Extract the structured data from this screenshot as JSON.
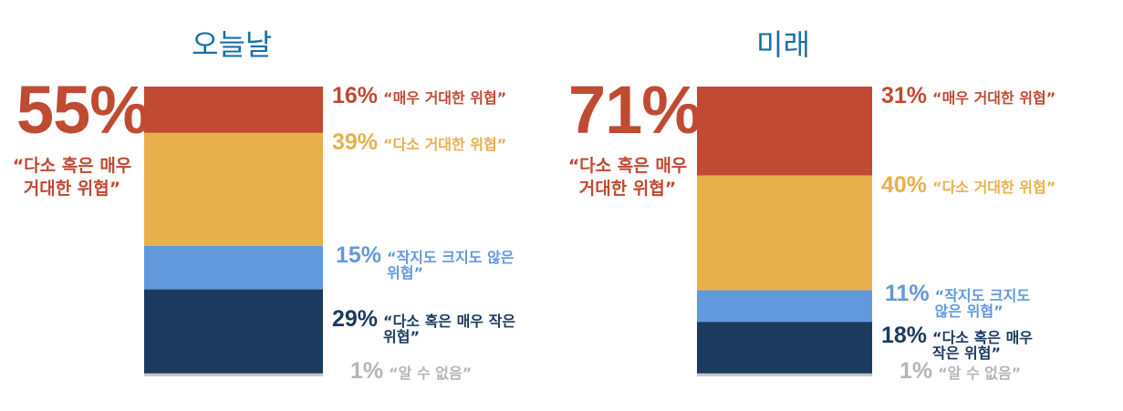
{
  "colors": {
    "title": "#1a6fa8",
    "very_great": "#c04a32",
    "somewhat_great": "#e8b04d",
    "neither": "#6199dc",
    "small": "#1b3a5e",
    "dont_know": "#c8c8c8",
    "dont_know_text": "#b5b5b5"
  },
  "chart_data": [
    {
      "type": "bar",
      "stacked": true,
      "title": "오늘날",
      "summary": {
        "value": "55%",
        "label": "“다소 혹은 매우\n거대한 위협”"
      },
      "segments": [
        {
          "key": "very_great",
          "value": 16,
          "pct_label": "16%",
          "label": "“매우 거대한 위협”"
        },
        {
          "key": "somewhat_great",
          "value": 39,
          "pct_label": "39%",
          "label": "“다소 거대한 위협”"
        },
        {
          "key": "neither",
          "value": 15,
          "pct_label": "15%",
          "label": "“작지도 크지도 않은\n위협”"
        },
        {
          "key": "small",
          "value": 29,
          "pct_label": "29%",
          "label": "“다소 혹은 매우 작은\n위협”"
        },
        {
          "key": "dont_know",
          "value": 1,
          "pct_label": "1%",
          "label": "“알 수 없음”"
        }
      ]
    },
    {
      "type": "bar",
      "stacked": true,
      "title": "미래",
      "summary": {
        "value": "71%",
        "label": "“다소 혹은 매우\n거대한 위협”"
      },
      "segments": [
        {
          "key": "very_great",
          "value": 31,
          "pct_label": "31%",
          "label": "“매우 거대한 위협”"
        },
        {
          "key": "somewhat_great",
          "value": 40,
          "pct_label": "40%",
          "label": "“다소 거대한 위협”"
        },
        {
          "key": "neither",
          "value": 11,
          "pct_label": "11%",
          "label": "“작지도 크지도\n않은 위협”"
        },
        {
          "key": "small",
          "value": 18,
          "pct_label": "18%",
          "label": "“다소 혹은 매우\n작은 위협”"
        },
        {
          "key": "dont_know",
          "value": 1,
          "pct_label": "1%",
          "label": "“알 수 없음”"
        }
      ]
    }
  ]
}
